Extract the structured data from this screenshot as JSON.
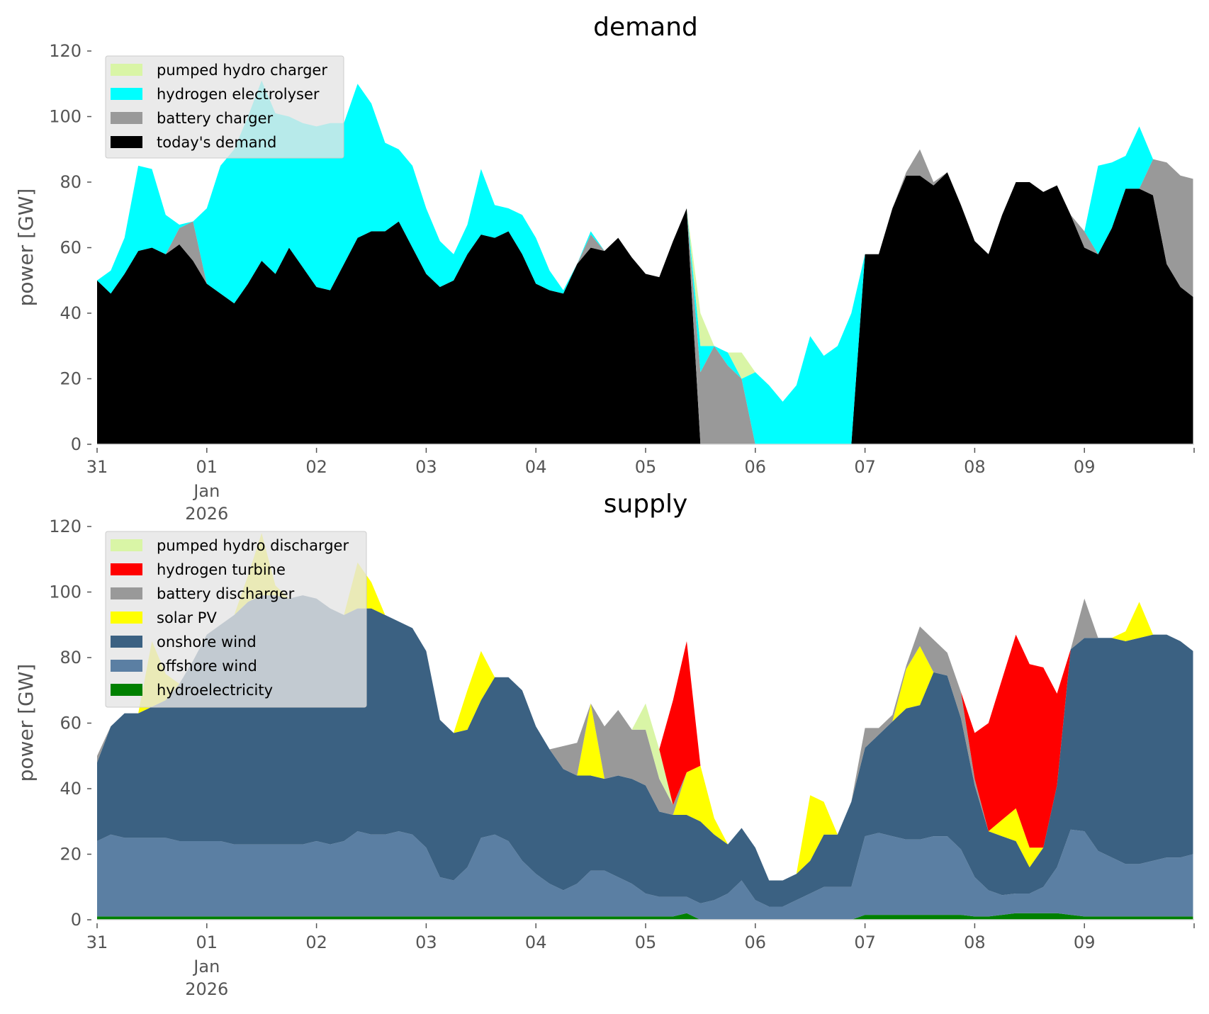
{
  "chart_data": [
    {
      "type": "area",
      "stacked": true,
      "title": "demand",
      "xlabel": "",
      "ylabel": "power [GW]",
      "ylim": [
        0,
        120
      ],
      "yticks": [
        0,
        20,
        40,
        60,
        80,
        100,
        120
      ],
      "x_unit": "days since 2025-12-31 00:00",
      "x_range": [
        0,
        10
      ],
      "xticks": [
        {
          "pos": 0,
          "label": "31"
        },
        {
          "pos": 1,
          "label": "01",
          "sublabel": "Jan\n2026"
        },
        {
          "pos": 2,
          "label": "02"
        },
        {
          "pos": 3,
          "label": "03"
        },
        {
          "pos": 4,
          "label": "04"
        },
        {
          "pos": 5,
          "label": "05"
        },
        {
          "pos": 6,
          "label": "06"
        },
        {
          "pos": 7,
          "label": "07"
        },
        {
          "pos": 8,
          "label": "08"
        },
        {
          "pos": 9,
          "label": "09"
        }
      ],
      "legend_position": "upper-left",
      "x_step_hours": 3,
      "series": [
        {
          "name": "today's demand",
          "color": "#000000",
          "values": [
            50,
            46,
            52,
            59,
            60,
            58,
            61,
            56,
            49,
            46,
            43,
            49,
            56,
            52,
            60,
            54,
            48,
            47,
            55,
            63,
            65,
            65,
            68,
            60,
            52,
            48,
            50,
            58,
            64,
            63,
            65,
            58,
            49,
            47,
            46,
            55,
            60,
            59,
            63,
            57,
            52,
            51,
            62,
            72,
            0,
            0,
            0,
            0,
            0,
            0,
            0,
            0,
            0,
            0,
            0,
            0,
            58,
            58,
            72,
            82,
            82,
            79,
            83,
            73,
            62,
            58,
            70,
            80,
            80,
            77,
            79,
            70,
            60,
            58,
            66,
            78,
            78,
            76,
            55,
            48,
            45
          ]
        },
        {
          "name": "battery charger",
          "color": "#999999",
          "values": [
            0,
            0,
            0,
            0,
            0,
            0,
            5,
            12,
            0,
            0,
            0,
            0,
            0,
            0,
            0,
            0,
            0,
            0,
            0,
            0,
            0,
            0,
            0,
            0,
            0,
            0,
            0,
            0,
            0,
            0,
            0,
            0,
            0,
            0,
            0,
            0,
            4,
            0,
            0,
            0,
            0,
            0,
            0,
            0,
            22,
            30,
            24,
            20,
            0,
            0,
            0,
            0,
            0,
            0,
            0,
            0,
            0,
            0,
            0,
            1,
            8,
            1,
            0,
            0,
            0,
            0,
            0,
            0,
            0,
            0,
            0,
            0,
            5,
            0,
            0,
            0,
            0,
            11,
            31,
            34,
            36
          ]
        },
        {
          "name": "hydrogen electrolyser",
          "color": "#00ffff",
          "values": [
            0,
            7,
            11,
            26,
            24,
            12,
            1,
            0,
            23,
            39,
            47,
            51,
            55,
            49,
            40,
            44,
            49,
            51,
            43,
            47,
            39,
            27,
            22,
            25,
            20,
            14,
            8,
            9,
            20,
            10,
            7,
            12,
            14,
            6,
            1,
            0,
            1,
            0,
            0,
            0,
            0,
            0,
            0,
            0,
            8,
            0,
            4,
            0,
            22,
            18,
            13,
            18,
            33,
            27,
            30,
            40,
            0,
            0,
            0,
            0,
            0,
            0,
            0,
            0,
            0,
            0,
            0,
            0,
            0,
            0,
            0,
            0,
            0,
            27,
            20,
            10,
            19,
            0,
            0,
            0,
            0
          ]
        },
        {
          "name": "pumped hydro charger",
          "color": "#d9f5a6",
          "values": [
            0,
            0,
            0,
            0,
            0,
            0,
            0,
            0,
            0,
            0,
            0,
            0,
            0,
            0,
            0,
            0,
            0,
            0,
            0,
            0,
            0,
            0,
            0,
            0,
            0,
            0,
            0,
            0,
            0,
            0,
            0,
            0,
            0,
            0,
            0,
            0,
            0,
            0,
            0,
            0,
            0,
            0,
            0,
            0,
            10,
            0,
            0,
            8,
            0,
            0,
            0,
            0,
            0,
            0,
            0,
            0,
            0,
            0,
            0,
            0,
            0,
            0,
            0,
            0,
            0,
            0,
            0,
            0,
            0,
            0,
            0,
            0,
            0,
            0,
            0,
            0,
            0,
            0,
            0,
            0,
            0
          ]
        }
      ]
    },
    {
      "type": "area",
      "stacked": true,
      "title": "supply",
      "xlabel": "",
      "ylabel": "power [GW]",
      "ylim": [
        0,
        120
      ],
      "yticks": [
        0,
        20,
        40,
        60,
        80,
        100,
        120
      ],
      "x_unit": "days since 2025-12-31 00:00",
      "x_range": [
        0,
        10
      ],
      "xticks": [
        {
          "pos": 0,
          "label": "31"
        },
        {
          "pos": 1,
          "label": "01",
          "sublabel": "Jan\n2026"
        },
        {
          "pos": 2,
          "label": "02"
        },
        {
          "pos": 3,
          "label": "03"
        },
        {
          "pos": 4,
          "label": "04"
        },
        {
          "pos": 5,
          "label": "05"
        },
        {
          "pos": 6,
          "label": "06"
        },
        {
          "pos": 7,
          "label": "07"
        },
        {
          "pos": 8,
          "label": "08"
        },
        {
          "pos": 9,
          "label": "09"
        }
      ],
      "legend_position": "upper-left",
      "x_step_hours": 3,
      "series": [
        {
          "name": "hydroelectricity",
          "color": "#008000",
          "values": [
            1,
            1,
            1,
            1,
            1,
            1,
            1,
            1,
            1,
            1,
            1,
            1,
            1,
            1,
            1,
            1,
            1,
            1,
            1,
            1,
            1,
            1,
            1,
            1,
            1,
            1,
            1,
            1,
            1,
            1,
            1,
            1,
            1,
            1,
            1,
            1,
            1,
            1,
            1,
            1,
            1,
            1,
            1,
            2,
            0,
            0,
            0,
            0,
            0,
            0,
            0,
            0,
            0,
            0,
            0,
            0,
            1.5,
            1.5,
            1.5,
            1.5,
            1.5,
            1.5,
            1.5,
            1.5,
            1,
            1,
            1.5,
            2,
            2,
            2,
            2,
            1.5,
            1,
            1,
            1,
            1,
            1,
            1,
            1,
            1,
            1
          ]
        },
        {
          "name": "offshore wind",
          "color": "#5b7fa3",
          "values": [
            23,
            25,
            24,
            24,
            24,
            24,
            23,
            23,
            23,
            23,
            22,
            22,
            22,
            22,
            22,
            22,
            23,
            22,
            23,
            26,
            25,
            25,
            26,
            25,
            21,
            12,
            11,
            15,
            24,
            25,
            23,
            17,
            13,
            10,
            8,
            10,
            14,
            14,
            12,
            10,
            7,
            6,
            6,
            5,
            5,
            6,
            8,
            12,
            6,
            4,
            4,
            6,
            8,
            10,
            10,
            10,
            24,
            25,
            24,
            23,
            23,
            24,
            24,
            20,
            12,
            8,
            6,
            6,
            6,
            8,
            14,
            26,
            26,
            20,
            18,
            16,
            16,
            17,
            18,
            18,
            19
          ]
        },
        {
          "name": "onshore wind",
          "color": "#3b6182",
          "values": [
            24,
            33,
            38,
            38,
            40,
            42,
            48,
            55,
            63,
            66,
            70,
            74,
            76,
            76,
            75,
            76,
            74,
            72,
            69,
            68,
            69,
            67,
            64,
            63,
            60,
            48,
            45,
            42,
            42,
            48,
            50,
            52,
            45,
            41,
            37,
            33,
            29,
            28,
            31,
            32,
            33,
            26,
            25,
            25,
            25,
            20,
            15,
            16,
            16,
            8,
            8,
            8,
            10,
            16,
            16,
            26,
            27,
            30,
            35,
            40,
            41,
            50,
            49,
            40,
            28,
            18,
            18,
            16,
            8,
            12,
            25,
            55,
            59,
            65,
            67,
            68,
            69,
            69,
            68,
            66,
            62
          ]
        },
        {
          "name": "solar PV",
          "color": "#ffff00",
          "values": [
            0,
            0,
            0,
            0,
            20,
            8,
            0,
            0,
            0,
            0,
            0,
            8,
            19,
            3,
            0,
            0,
            0,
            0,
            0,
            14,
            8,
            0,
            0,
            0,
            0,
            0,
            0,
            12,
            15,
            0,
            0,
            0,
            0,
            0,
            0,
            0,
            22,
            0,
            0,
            0,
            0,
            0,
            0,
            13,
            17,
            5,
            0,
            0,
            0,
            0,
            0,
            0,
            20,
            10,
            0,
            0,
            0,
            0,
            0,
            12,
            18,
            0,
            0,
            0,
            0,
            0,
            5,
            10,
            6,
            0,
            0,
            0,
            0,
            0,
            0,
            3,
            11,
            0,
            0,
            0,
            0
          ]
        },
        {
          "name": "battery discharger",
          "color": "#999999",
          "values": [
            2,
            0,
            0,
            0,
            0,
            0,
            0,
            0,
            0,
            0,
            0,
            0,
            0,
            0,
            0,
            0,
            0,
            0,
            0,
            0,
            0,
            0,
            0,
            0,
            0,
            0,
            0,
            0,
            0,
            0,
            0,
            0,
            0,
            0,
            7,
            10,
            0,
            16,
            20,
            15,
            17,
            10,
            3,
            0,
            0,
            0,
            0,
            0,
            0,
            0,
            0,
            0,
            0,
            0,
            0,
            0,
            6,
            2,
            2,
            1,
            6,
            10,
            7,
            8,
            2,
            0,
            0,
            0,
            0,
            0,
            0,
            0,
            12,
            0,
            0,
            0,
            0,
            0,
            0,
            0,
            0
          ]
        },
        {
          "name": "pumped hydro discharger",
          "color": "#d9f5a6",
          "values": [
            0,
            0,
            0,
            0,
            0,
            0,
            0,
            0,
            0,
            0,
            0,
            0,
            0,
            0,
            0,
            0,
            0,
            0,
            0,
            0,
            0,
            0,
            0,
            0,
            0,
            0,
            0,
            0,
            0,
            0,
            0,
            0,
            0,
            0,
            0,
            0,
            0,
            0,
            0,
            0,
            8,
            9,
            0,
            0,
            0,
            0,
            0,
            0,
            0,
            0,
            0,
            0,
            0,
            0,
            0,
            0,
            0,
            0,
            0,
            0,
            0,
            0,
            0,
            0,
            0,
            0,
            0,
            0,
            0,
            0,
            0,
            0,
            0,
            0,
            0,
            0,
            0,
            0,
            0,
            0,
            0
          ]
        },
        {
          "name": "hydrogen turbine",
          "color": "#ff0000",
          "values": [
            0,
            0,
            0,
            0,
            0,
            0,
            0,
            0,
            0,
            0,
            0,
            0,
            0,
            0,
            0,
            0,
            0,
            0,
            0,
            0,
            0,
            0,
            0,
            0,
            0,
            0,
            0,
            0,
            0,
            0,
            0,
            0,
            0,
            0,
            0,
            0,
            0,
            0,
            0,
            0,
            0,
            0,
            32,
            40,
            0,
            0,
            0,
            0,
            0,
            0,
            0,
            0,
            0,
            0,
            0,
            0,
            0,
            0,
            0,
            0,
            0,
            0,
            0,
            0,
            14,
            33,
            43,
            53,
            56,
            55,
            28,
            0,
            0,
            0,
            0,
            0,
            0,
            0,
            0,
            0,
            0
          ]
        }
      ]
    }
  ],
  "legends": {
    "demand": [
      "pumped hydro charger",
      "hydrogen electrolyser",
      "battery charger",
      "today's demand"
    ],
    "supply": [
      "pumped hydro discharger",
      "hydrogen turbine",
      "battery discharger",
      "solar PV",
      "onshore wind",
      "offshore wind",
      "hydroelectricity"
    ]
  }
}
